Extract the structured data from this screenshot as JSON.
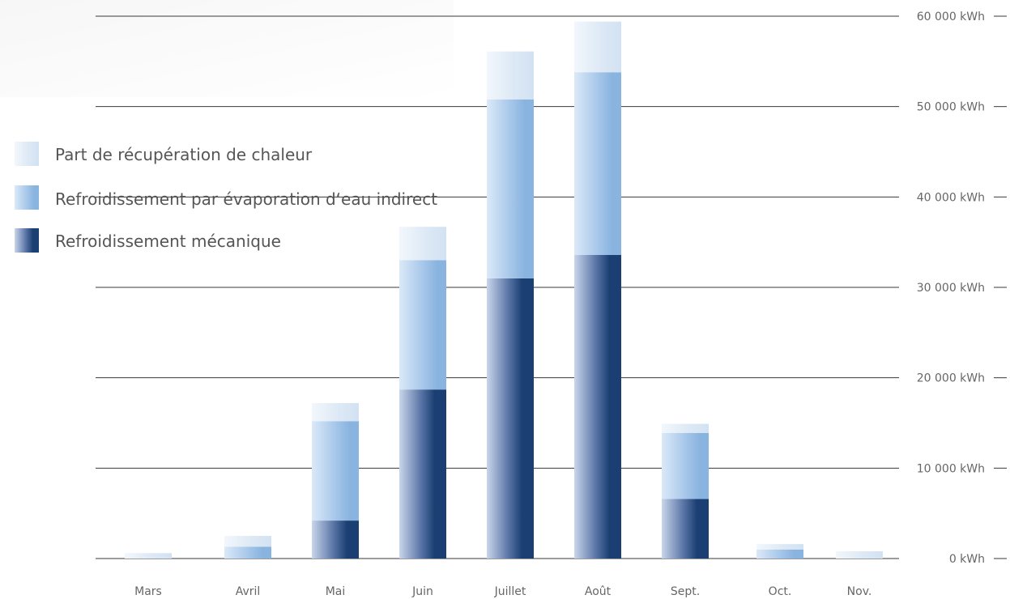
{
  "chart_data": {
    "type": "bar",
    "stacked": true,
    "categories": [
      "Mars",
      "Avril",
      "Mai",
      "Juin",
      "Juillet",
      "Août",
      "Sept.",
      "Oct.",
      "Nov."
    ],
    "series": [
      {
        "name": "Refroidissement mécanique",
        "color": "#1b3f73",
        "values": [
          0,
          0,
          4200,
          18700,
          31000,
          33600,
          6600,
          0,
          0
        ]
      },
      {
        "name": "Refroidissement par évaporation d‘eau indirect",
        "color": "#8ab4e0",
        "values": [
          0,
          1300,
          11000,
          14300,
          19800,
          20200,
          7300,
          1000,
          0
        ]
      },
      {
        "name": "Part de récupération de chaleur",
        "color": "#d7e6f5",
        "values": [
          600,
          1200,
          2000,
          3700,
          5300,
          5600,
          1000,
          600,
          800
        ]
      }
    ],
    "yticks": [
      0,
      10000,
      20000,
      30000,
      40000,
      50000,
      60000
    ],
    "ytick_labels": [
      "0 kWh",
      "10 000 kWh",
      "20 000 kWh",
      "30 000 kWh",
      "40 000 kWh",
      "50 000 kWh",
      "60 000 kWh"
    ],
    "ylim": [
      0,
      60000
    ],
    "grid": true,
    "legend_position": "left",
    "title": "",
    "xlabel": "",
    "ylabel": ""
  }
}
